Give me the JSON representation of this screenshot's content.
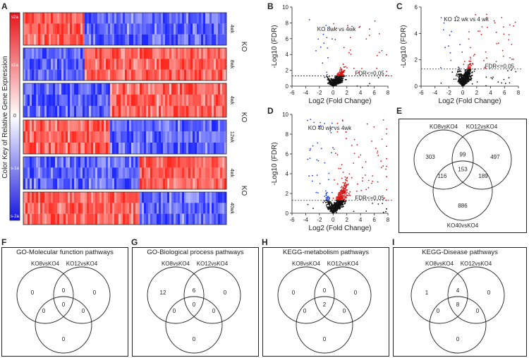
{
  "panels": {
    "A": "A",
    "B": "B",
    "C": "C",
    "D": "D",
    "E": "E",
    "F": "F",
    "G": "G",
    "H": "H",
    "I": "I"
  },
  "heatmap": {
    "color_key_label": "Color Key of Relative Gene Expression",
    "color_key_ticks": [
      "2",
      "1",
      "0",
      "-1",
      "-2"
    ],
    "scale_labels": {
      "top": "s2a",
      "upper": "s1a",
      "lower": "s-1a",
      "bottom": "s-2a"
    },
    "blocks": [
      {
        "group": "KO",
        "rows": [
          "4wk",
          "8wk"
        ]
      },
      {
        "group": "KO",
        "rows": [
          "4wk",
          "12wk"
        ]
      },
      {
        "group": "KO",
        "rows": [
          "4wk",
          "40wk"
        ]
      }
    ]
  },
  "volcano_axes": {
    "ylabel": "-Log10 (FDR)",
    "xlabel": "Log2 (Fold Change)",
    "threshold_label": "FDR<=0.05",
    "xticks": [
      "-6",
      "-4",
      "-2",
      "0",
      "2",
      "4",
      "6",
      "8"
    ]
  },
  "chart_data": [
    {
      "type": "scatter",
      "panel": "B",
      "title": "KO 8wk vs 4wk",
      "xlabel": "Log2 (Fold Change)",
      "ylabel": "-Log10 (FDR)",
      "xlim": [
        -6,
        8
      ],
      "ylim": [
        0,
        10
      ],
      "yticks": [
        "0",
        "2",
        "4",
        "6",
        "8",
        "10"
      ],
      "threshold_fdr": 0.05,
      "series": [
        {
          "name": "down",
          "color": "#1a3cd6"
        },
        {
          "name": "up",
          "color": "#d41818"
        },
        {
          "name": "ns",
          "color": "#111111"
        }
      ]
    },
    {
      "type": "scatter",
      "panel": "C",
      "title": "KO 12 wk vs 4 wk",
      "xlabel": "Log2 (Fold Change)",
      "ylabel": "-Log10 (FDR)",
      "xlim": [
        -6,
        8
      ],
      "ylim": [
        0,
        6
      ],
      "yticks": [
        "0",
        "2",
        "4",
        "6"
      ],
      "threshold_fdr": 0.05,
      "series": [
        {
          "name": "down",
          "color": "#1a3cd6"
        },
        {
          "name": "up",
          "color": "#d41818"
        },
        {
          "name": "ns",
          "color": "#111111"
        }
      ]
    },
    {
      "type": "scatter",
      "panel": "D",
      "title": "KO 40 wk vs 4wk",
      "xlabel": "Log2 (Fold Change)",
      "ylabel": "-Log10 (FDR)",
      "xlim": [
        -6,
        8
      ],
      "ylim": [
        0,
        10
      ],
      "yticks": [
        "0",
        "2",
        "4",
        "6",
        "8",
        "10"
      ],
      "threshold_fdr": 0.05,
      "series": [
        {
          "name": "down",
          "color": "#1a3cd6"
        },
        {
          "name": "up",
          "color": "#d41818"
        },
        {
          "name": "ns",
          "color": "#111111"
        }
      ]
    }
  ],
  "venns": [
    {
      "panel": "E",
      "title": "",
      "labels": [
        "KO8vsKO4",
        "KO12vsKO4",
        "KO40vsKO4"
      ],
      "a": "303",
      "b": "497",
      "c": "886",
      "ab": "99",
      "ac": "116",
      "bc": "189",
      "abc": "153"
    },
    {
      "panel": "F",
      "title": "GO-Molecular function pathways",
      "labels": [
        "KO8vsKO4",
        "KO12vsKO4",
        "KO40vsKO4"
      ],
      "a": "0",
      "b": "0",
      "c": "0",
      "ab": "0",
      "ac": "0",
      "bc": "0",
      "abc": "0"
    },
    {
      "panel": "G",
      "title": "GO-Biological process pathways",
      "labels": [
        "KO8vsKO4",
        "KO12vsKO4",
        "KO40vsKO4"
      ],
      "a": "12",
      "b": "0",
      "c": "0",
      "ab": "6",
      "ac": "0",
      "bc": "0",
      "abc": "0"
    },
    {
      "panel": "H",
      "title": "KEGG-metabolism pathways",
      "labels": [
        "KO8vsKO4",
        "KO12vsKO4",
        "KO40vsKO4"
      ],
      "a": "0",
      "b": "0",
      "c": "0",
      "ab": "0",
      "ac": "0",
      "bc": "0",
      "abc": "2"
    },
    {
      "panel": "I",
      "title": "KEGG-Disease pathways",
      "labels": [
        "KO8vsKO4",
        "KO12vsKO4",
        "KO40vsKO4"
      ],
      "a": "1",
      "b": "0",
      "c": "0",
      "ab": "4",
      "ac": "0",
      "bc": "0",
      "abc": "8"
    }
  ]
}
